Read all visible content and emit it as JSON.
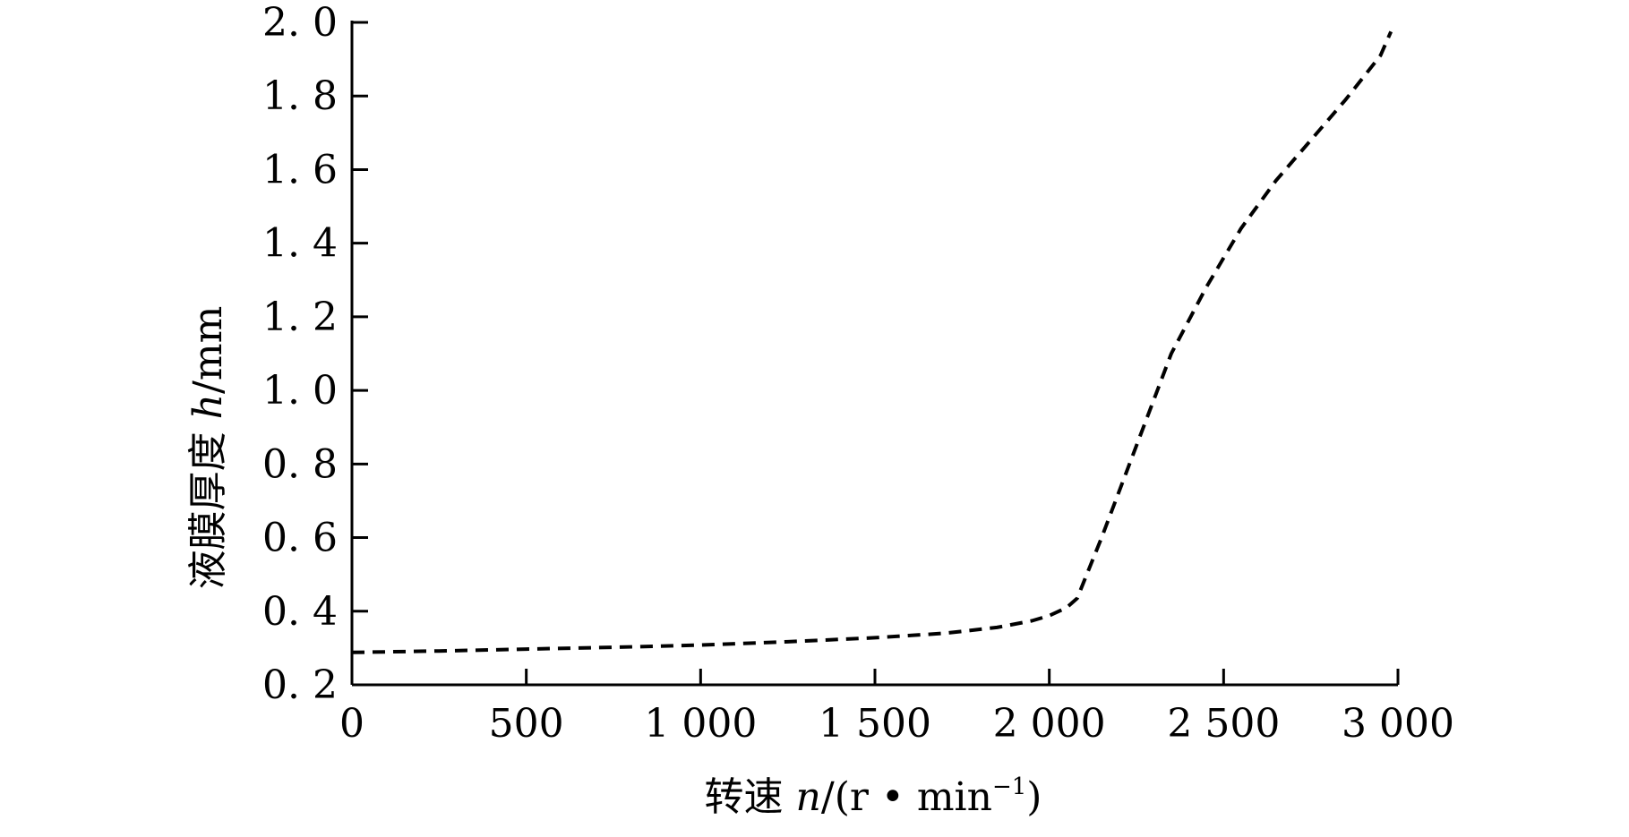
{
  "chart_data": {
    "type": "line",
    "title": "",
    "xlabel": {
      "prefix": "转速 ",
      "var": "n",
      "unit": "/(r • min",
      "exp": "−1",
      "close": ")"
    },
    "ylabel": {
      "prefix": "液膜厚度 ",
      "var": "h",
      "unit": "/mm"
    },
    "xlim": [
      0,
      3000
    ],
    "ylim": [
      0.2,
      2.0
    ],
    "xticks": [
      0,
      500,
      1000,
      1500,
      2000,
      2500,
      3000
    ],
    "xtick_labels": [
      "0",
      "500",
      "1 000",
      "1 500",
      "2 000",
      "2 500",
      "3 000"
    ],
    "yticks": [
      0.2,
      0.4,
      0.6,
      0.8,
      1.0,
      1.2,
      1.4,
      1.6,
      1.8,
      2.0
    ],
    "ytick_labels": [
      "0. 2",
      "0. 4",
      "0. 6",
      "0. 8",
      "1. 0",
      "1. 2",
      "1. 4",
      "1. 6",
      "1. 8",
      "2. 0"
    ],
    "grid": false,
    "series": [
      {
        "line_style": "dashed",
        "color": "#000000",
        "x": [
          0,
          250,
          500,
          750,
          1000,
          1250,
          1500,
          1700,
          1850,
          1950,
          2000,
          2050,
          2080,
          2150,
          2250,
          2350,
          2450,
          2550,
          2650,
          2750,
          2850,
          2950,
          2980
        ],
        "y": [
          0.288,
          0.292,
          0.297,
          0.302,
          0.308,
          0.317,
          0.328,
          0.34,
          0.356,
          0.374,
          0.388,
          0.41,
          0.435,
          0.6,
          0.85,
          1.1,
          1.28,
          1.44,
          1.57,
          1.68,
          1.79,
          1.91,
          1.975
        ]
      }
    ]
  }
}
